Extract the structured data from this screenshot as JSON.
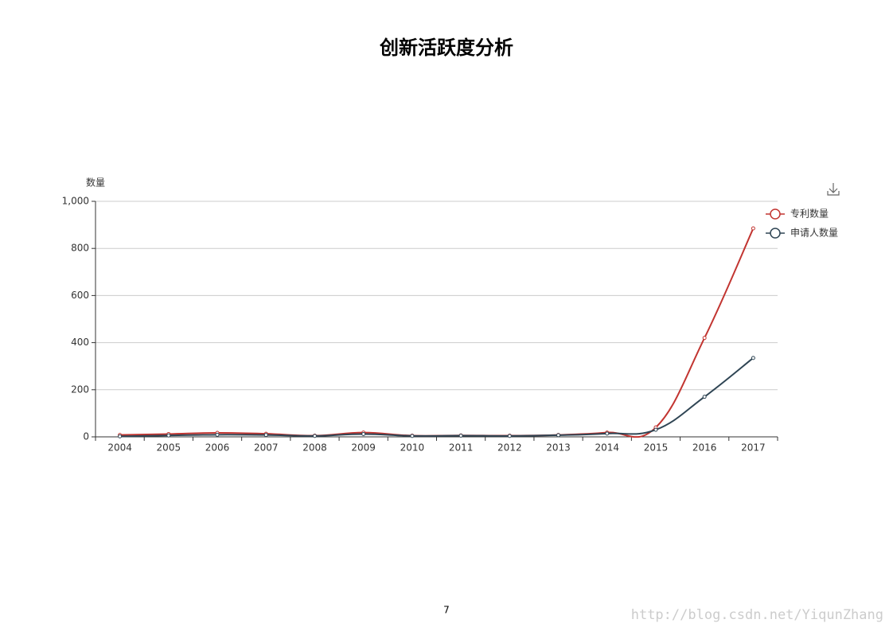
{
  "chart_data": {
    "type": "line",
    "title": "创新活跃度分析",
    "y_label": "数量",
    "categories": [
      "2004",
      "2005",
      "2006",
      "2007",
      "2008",
      "2009",
      "2010",
      "2011",
      "2012",
      "2013",
      "2014",
      "2015",
      "2016",
      "2017"
    ],
    "series": [
      {
        "name": "专利数量",
        "color": "#c23531",
        "values": [
          8,
          12,
          17,
          13,
          5,
          18,
          5,
          6,
          5,
          8,
          18,
          40,
          420,
          885
        ]
      },
      {
        "name": "申请人数量",
        "color": "#2f4554",
        "values": [
          2,
          6,
          9,
          8,
          4,
          12,
          4,
          5,
          4,
          7,
          14,
          30,
          170,
          335
        ]
      }
    ],
    "ylim": [
      0,
      1000
    ],
    "yticks": [
      0,
      200,
      400,
      600,
      800,
      {
        "value": 1000,
        "label": "1,000"
      }
    ],
    "grid": true,
    "smooth": true,
    "legend": "right"
  },
  "page_number": "7",
  "watermark": "http://blog.csdn.net/YiqunZhang"
}
